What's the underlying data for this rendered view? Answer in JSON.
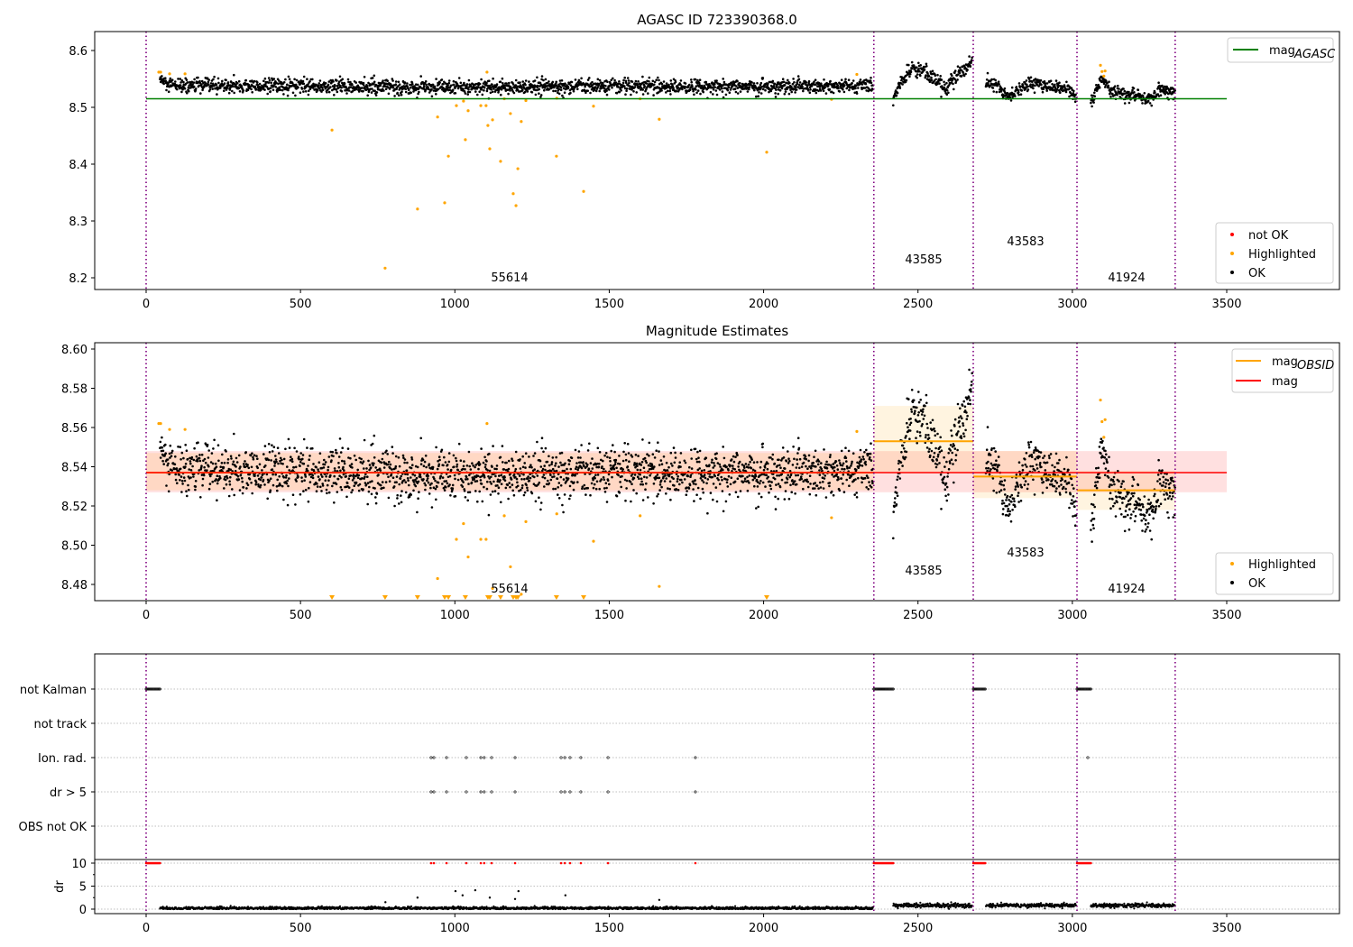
{
  "chart_data": [
    {
      "type": "scatter",
      "title": "AGASC ID 723390368.0",
      "ylim": [
        8.179,
        8.633
      ],
      "xlim": [
        -167,
        3865
      ],
      "yticks": [
        "8.2",
        "8.3",
        "8.4",
        "8.5",
        "8.6"
      ],
      "xticks": [
        "0",
        "500",
        "1000",
        "1500",
        "2000",
        "2500",
        "3000",
        "3500"
      ],
      "mag_agasc": 8.515,
      "legend_line": {
        "label": "mag",
        "sub": "AGASC",
        "color": "#008000"
      },
      "legend_points": [
        {
          "label": "not OK",
          "color": "#ff0000"
        },
        {
          "label": "Highlighted",
          "color": "#ffa500"
        },
        {
          "label": "OK",
          "color": "#000000"
        }
      ]
    },
    {
      "type": "scatter",
      "title": "Magnitude Estimates",
      "ylim": [
        8.4713,
        8.6032
      ],
      "xlim": [
        -167,
        3865
      ],
      "yticks": [
        "8.48",
        "8.50",
        "8.52",
        "8.54",
        "8.56",
        "8.58",
        "8.60"
      ],
      "xticks": [
        "0",
        "500",
        "1000",
        "1500",
        "2000",
        "2500",
        "3000",
        "3500"
      ],
      "mag": 8.537,
      "mag_band": [
        8.527,
        8.548
      ],
      "legend_lines": [
        {
          "label": "mag",
          "sub": "OBSID",
          "color": "#ffa500"
        },
        {
          "label": "mag",
          "sub": "",
          "color": "#ff0000"
        }
      ],
      "legend_points": [
        {
          "label": "Highlighted",
          "color": "#ffa500"
        },
        {
          "label": "OK",
          "color": "#000000"
        }
      ]
    },
    {
      "type": "scatter",
      "flag_labels": [
        "not Kalman",
        "not track",
        "Ion. rad.",
        "dr > 5",
        "OBS not OK"
      ],
      "ylabel": "dr",
      "yticks": [
        "0",
        "5",
        "10"
      ],
      "xticks": [
        "0",
        "500",
        "1000",
        "1500",
        "2000",
        "2500",
        "3000",
        "3500"
      ],
      "not_kalman_ranges": [
        [
          0,
          45
        ],
        [
          2357,
          2420
        ],
        [
          2679,
          2720
        ],
        [
          3015,
          3060
        ]
      ],
      "ion_rad_x": [
        923,
        932,
        973,
        1037,
        1084,
        1095,
        1119,
        1195,
        1344,
        1356,
        1373,
        1408,
        1496,
        1779,
        3050
      ],
      "dr_gt5_x": [
        923,
        932,
        973,
        1037,
        1084,
        1095,
        1119,
        1195,
        1344,
        1356,
        1373,
        1408,
        1496,
        1779
      ],
      "dr_outliers": [
        [
          879,
          2.5
        ],
        [
          1002,
          3.9
        ],
        [
          1025,
          3.0
        ],
        [
          1066,
          4.1
        ],
        [
          1113,
          2.5
        ],
        [
          1195,
          2.2
        ],
        [
          1206,
          3.9
        ],
        [
          1358,
          3.0
        ],
        [
          1662,
          2.0
        ],
        [
          775,
          1.5
        ]
      ]
    }
  ],
  "segments": [
    {
      "obsid": "55614",
      "start": 0,
      "end": 2357,
      "data_start": 45,
      "data_end": 2355,
      "mean": 8.537,
      "band": [
        8.528,
        8.547
      ],
      "noise": 0.0065,
      "dr": 0.2,
      "trend": [
        [
          45,
          8.55
        ],
        [
          70,
          8.538
        ],
        [
          300,
          8.538
        ],
        [
          1000,
          8.535
        ],
        [
          1500,
          8.537
        ],
        [
          2355,
          8.537
        ]
      ]
    },
    {
      "obsid": "43585",
      "start": 2357,
      "end": 2679,
      "data_start": 2420,
      "data_end": 2676,
      "mean": 8.553,
      "band": [
        8.537,
        8.571
      ],
      "noise": 0.007,
      "dr": 0.8,
      "trend": [
        [
          2420,
          8.512
        ],
        [
          2440,
          8.54
        ],
        [
          2480,
          8.568
        ],
        [
          2520,
          8.565
        ],
        [
          2560,
          8.545
        ],
        [
          2590,
          8.533
        ],
        [
          2615,
          8.55
        ],
        [
          2650,
          8.565
        ],
        [
          2676,
          8.585
        ]
      ]
    },
    {
      "obsid": "43583",
      "start": 2679,
      "end": 3015,
      "data_start": 2720,
      "data_end": 3013,
      "mean": 8.535,
      "band": [
        8.524,
        8.548
      ],
      "noise": 0.006,
      "dr": 0.8,
      "trend": [
        [
          2720,
          8.545
        ],
        [
          2760,
          8.54
        ],
        [
          2790,
          8.516
        ],
        [
          2820,
          8.53
        ],
        [
          2870,
          8.545
        ],
        [
          2920,
          8.537
        ],
        [
          2985,
          8.535
        ],
        [
          3013,
          8.514
        ]
      ]
    },
    {
      "obsid": "41924",
      "start": 3015,
      "end": 3333,
      "data_start": 3060,
      "data_end": 3333,
      "mean": 8.528,
      "band": [
        8.518,
        8.538
      ],
      "noise": 0.0055,
      "dr": 0.8,
      "trend": [
        [
          3060,
          8.505
        ],
        [
          3080,
          8.535
        ],
        [
          3095,
          8.552
        ],
        [
          3120,
          8.53
        ],
        [
          3200,
          8.522
        ],
        [
          3250,
          8.514
        ],
        [
          3290,
          8.532
        ],
        [
          3333,
          8.528
        ]
      ]
    }
  ],
  "highlighted": [
    [
      41,
      8.562
    ],
    [
      47,
      8.562
    ],
    [
      76,
      8.559
    ],
    [
      126,
      8.559
    ],
    [
      602,
      8.46
    ],
    [
      774,
      8.217
    ],
    [
      879,
      8.321
    ],
    [
      944,
      8.483
    ],
    [
      967,
      8.332
    ],
    [
      979,
      8.414
    ],
    [
      1005,
      8.503
    ],
    [
      1028,
      8.511
    ],
    [
      1034,
      8.443
    ],
    [
      1043,
      8.494
    ],
    [
      1084,
      8.503
    ],
    [
      1101,
      8.503
    ],
    [
      1104,
      8.562
    ],
    [
      1107,
      8.468
    ],
    [
      1113,
      8.427
    ],
    [
      1122,
      8.478
    ],
    [
      1148,
      8.405
    ],
    [
      1160,
      8.515
    ],
    [
      1180,
      8.489
    ],
    [
      1189,
      8.348
    ],
    [
      1198,
      8.327
    ],
    [
      1204,
      8.392
    ],
    [
      1215,
      8.475
    ],
    [
      1230,
      8.512
    ],
    [
      1329,
      8.414
    ],
    [
      1330,
      8.516
    ],
    [
      1417,
      8.352
    ],
    [
      1449,
      8.502
    ],
    [
      1600,
      8.515
    ],
    [
      1662,
      8.479
    ],
    [
      2010,
      8.421
    ],
    [
      2220,
      8.514
    ],
    [
      2302,
      8.558
    ],
    [
      3091,
      8.574
    ],
    [
      3096,
      8.563
    ],
    [
      3102,
      8.555
    ],
    [
      3106,
      8.564
    ]
  ]
}
